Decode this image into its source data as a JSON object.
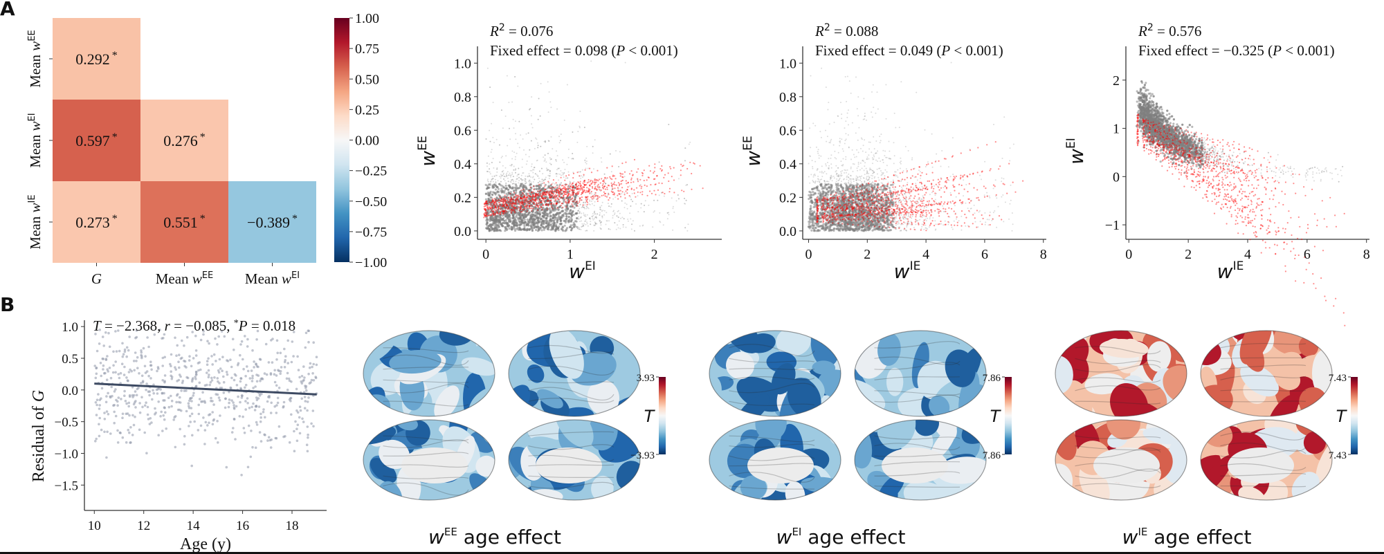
{
  "panels": {
    "A": {
      "label": "A"
    },
    "B": {
      "label": "B"
    }
  },
  "chart_data": [
    {
      "id": "corr-heatmap",
      "type": "heatmap",
      "title": "",
      "rows": [
        {
          "label_prefix": "Mean w",
          "label_sup": "EE"
        },
        {
          "label_prefix": "Mean w",
          "label_sup": "EI"
        },
        {
          "label_prefix": "Mean w",
          "label_sup": "IE"
        }
      ],
      "columns": [
        {
          "label_prefix": "G",
          "label_sup": ""
        },
        {
          "label_prefix": "Mean w",
          "label_sup": "EE"
        },
        {
          "label_prefix": "Mean w",
          "label_sup": "EI"
        }
      ],
      "cells": [
        [
          {
            "value": 0.292,
            "text": "0.292",
            "sig": "*"
          },
          null,
          null
        ],
        [
          {
            "value": 0.597,
            "text": "0.597",
            "sig": "*"
          },
          {
            "value": 0.276,
            "text": "0.276",
            "sig": "*"
          },
          null
        ],
        [
          {
            "value": 0.273,
            "text": "0.273",
            "sig": "*"
          },
          {
            "value": 0.551,
            "text": "0.551",
            "sig": "*"
          },
          {
            "value": -0.389,
            "text": "−0.389",
            "sig": "*"
          }
        ]
      ],
      "colorbar": {
        "vmin": -1.0,
        "vmax": 1.0,
        "colormap": "RdBu_r",
        "ticks": [
          "1.00",
          "0.75",
          "0.50",
          "0.25",
          "0.00",
          "−0.25",
          "−0.50",
          "−0.75",
          "−1.00"
        ],
        "tick_values": [
          1.0,
          0.75,
          0.5,
          0.25,
          0.0,
          -0.25,
          -0.5,
          -0.75,
          -1.0
        ]
      }
    },
    {
      "id": "scatter-wee-wei",
      "type": "scatter",
      "annotation_r2": "= 0.076",
      "annotation_fixed": "Fixed effect = 0.098 (",
      "annotation_p": "P",
      "annotation_p_tail": " < 0.001)",
      "xlabel": "w",
      "xlabel_sup": "EI",
      "ylabel": "w",
      "ylabel_sup": "EE",
      "xlim": [
        -0.1,
        2.8
      ],
      "ylim": [
        -0.05,
        1.1
      ],
      "xticks": [
        0,
        1,
        2
      ],
      "xtick_labels": [
        "0",
        "1",
        "2"
      ],
      "yticks": [
        0.0,
        0.2,
        0.4,
        0.6,
        0.8,
        1.0
      ],
      "ytick_labels": [
        "0.0",
        "0.2",
        "0.4",
        "0.6",
        "0.8",
        "1.0"
      ],
      "series": [
        {
          "name": "observed",
          "color": "#808080",
          "cloud": {
            "x_center": 0.5,
            "x_spread": 0.45,
            "y_center": 0.12,
            "y_spread": 0.12,
            "x_min": 0,
            "x_max": 2.7,
            "y_min": 0,
            "y_max": 1.05
          }
        },
        {
          "name": "fitted",
          "color": "#ff0000",
          "line_fan": {
            "x_start": 0.0,
            "x_end": [
              1.2,
              2.7
            ],
            "y_start": [
              0.08,
              0.18
            ],
            "slope": [
              0.04,
              0.16
            ]
          }
        }
      ]
    },
    {
      "id": "scatter-wee-wie",
      "type": "scatter",
      "annotation_r2": "= 0.088",
      "annotation_fixed": "Fixed effect = 0.049 (",
      "annotation_p": "P",
      "annotation_p_tail": " < 0.001)",
      "xlabel": "w",
      "xlabel_sup": "IE",
      "ylabel": "w",
      "ylabel_sup": "EE",
      "xlim": [
        -0.2,
        8.1
      ],
      "ylim": [
        -0.05,
        1.1
      ],
      "xticks": [
        0,
        2,
        4,
        6,
        8
      ],
      "xtick_labels": [
        "0",
        "2",
        "4",
        "6",
        "8"
      ],
      "yticks": [
        0.0,
        0.2,
        0.4,
        0.6,
        0.8,
        1.0
      ],
      "ytick_labels": [
        "0.0",
        "0.2",
        "0.4",
        "0.6",
        "0.8",
        "1.0"
      ],
      "series": [
        {
          "name": "observed",
          "color": "#808080",
          "cloud": {
            "x_center": 1.6,
            "x_spread": 1.0,
            "y_center": 0.12,
            "y_spread": 0.12,
            "x_min": 0.2,
            "x_max": 7.8,
            "y_min": 0,
            "y_max": 1.05
          }
        },
        {
          "name": "fitted",
          "color": "#ff0000",
          "line_fan": {
            "x_start": 0.3,
            "x_end": [
              4.0,
              7.7
            ],
            "y_start": [
              0.05,
              0.2
            ],
            "slope": [
              -0.02,
              0.06
            ]
          }
        }
      ]
    },
    {
      "id": "scatter-wei-wie",
      "type": "scatter",
      "annotation_r2": "= 0.576",
      "annotation_fixed": "Fixed effect = −0.325 (",
      "annotation_p": "P",
      "annotation_p_tail": " < 0.001)",
      "xlabel": "w",
      "xlabel_sup": "IE",
      "ylabel": "w",
      "ylabel_sup": "EI",
      "xlim": [
        -0.1,
        8.1
      ],
      "ylim": [
        -1.3,
        2.7
      ],
      "xticks": [
        0,
        2,
        4,
        6,
        8
      ],
      "xtick_labels": [
        "0",
        "2",
        "4",
        "6",
        "8"
      ],
      "yticks": [
        -1,
        0,
        1,
        2
      ],
      "ytick_labels": [
        "−1",
        "0",
        "1",
        "2"
      ],
      "series": [
        {
          "name": "observed",
          "color": "#808080",
          "cloud": {
            "decay": true,
            "x_min": 0.25,
            "x_max": 7.7
          }
        },
        {
          "name": "fitted",
          "color": "#ff0000",
          "line_fan": {
            "x_start": 0.3,
            "x_end": [
              4.0,
              7.7
            ],
            "y_start": [
              0.6,
              1.3
            ],
            "slope": [
              -0.5,
              -0.15
            ]
          }
        }
      ]
    },
    {
      "id": "scatter-residual-age",
      "type": "scatter",
      "annotation": {
        "T_label": "T",
        "T_val": " = −2.368, ",
        "r_label": "r",
        "r_val": " = −0.085, ",
        "star": "*",
        "P_label": "P",
        "P_val": " = 0.018"
      },
      "xlabel": "Age (y)",
      "ylabel_prefix": "Residual of ",
      "ylabel_var": "G",
      "xlim": [
        9.6,
        19.4
      ],
      "ylim": [
        -1.9,
        1.1
      ],
      "xticks": [
        10,
        12,
        14,
        16,
        18
      ],
      "xtick_labels": [
        "10",
        "12",
        "14",
        "16",
        "18"
      ],
      "yticks": [
        -1.5,
        -1.0,
        -0.5,
        0.0,
        0.5,
        1.0
      ],
      "ytick_labels": [
        "−1.5",
        "−1.0",
        "−0.5",
        "0.0",
        "0.5",
        "1.0"
      ],
      "point_color": "#8e96a8",
      "line_color": "#3d4a62",
      "regression": {
        "x": [
          10,
          19
        ],
        "y": [
          0.1,
          -0.07
        ]
      },
      "n_points": 700
    }
  ],
  "brains": [
    {
      "id": "wee",
      "title_var": "w",
      "title_sup": "EE",
      "title_tail": " age effect",
      "cb_label": "T",
      "cb_max": "3.93",
      "cb_min": "−3.93",
      "tone": "blue"
    },
    {
      "id": "wei",
      "title_var": "w",
      "title_sup": "EI",
      "title_tail": " age effect",
      "cb_label": "T",
      "cb_max": "7.86",
      "cb_min": "7.86",
      "tone": "blue"
    },
    {
      "id": "wie",
      "title_var": "w",
      "title_sup": "IE",
      "title_tail": " age effect",
      "cb_label": "T",
      "cb_max": "7.43",
      "cb_min": "7.43",
      "tone": "red"
    }
  ]
}
